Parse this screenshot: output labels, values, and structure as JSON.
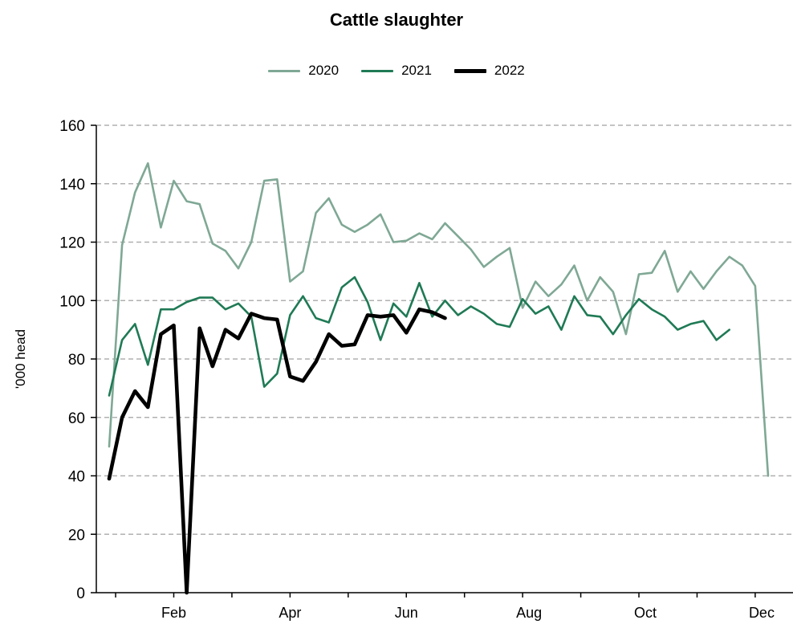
{
  "chart_data": {
    "type": "line",
    "title": "Cattle slaughter",
    "xlabel": "",
    "ylabel": "'000 head",
    "xlim": [
      1,
      53
    ],
    "ylim": [
      0,
      160
    ],
    "yticks": [
      0,
      20,
      40,
      60,
      80,
      100,
      120,
      140,
      160
    ],
    "xtick_labels": [
      {
        "label": "Feb",
        "x": 7
      },
      {
        "label": "Apr",
        "x": 16
      },
      {
        "label": "Jun",
        "x": 25
      },
      {
        "label": "Aug",
        "x": 34.5
      },
      {
        "label": "Oct",
        "x": 43.5
      },
      {
        "label": "Dec",
        "x": 52.5
      }
    ],
    "grid": true,
    "legend": "top-center",
    "series": [
      {
        "name": "2020",
        "color": "#7fa895",
        "width": 2.6,
        "x": [
          2,
          3,
          4,
          5,
          6,
          7,
          8,
          9,
          10,
          11,
          12,
          13,
          14,
          15,
          16,
          17,
          18,
          19,
          20,
          21,
          22,
          23,
          24,
          25,
          26,
          27,
          28,
          29,
          30,
          31,
          32,
          33,
          34,
          35,
          36,
          37,
          38,
          39,
          40,
          41,
          42,
          43,
          44,
          45,
          46,
          47,
          48,
          49,
          50,
          51,
          52,
          53
        ],
        "values": [
          50,
          119,
          137,
          147,
          125,
          141,
          134,
          133,
          119.5,
          117,
          111,
          120,
          141,
          141.5,
          106.5,
          110,
          130,
          135,
          126,
          123.5,
          126,
          129.5,
          120,
          120.5,
          123,
          121,
          126.5,
          122,
          117.5,
          111.5,
          115,
          118,
          97.5,
          106.5,
          101.5,
          105.5,
          112,
          100,
          108,
          103,
          88.5,
          109,
          109.5,
          117,
          103,
          110,
          104,
          110,
          115,
          112,
          105,
          40
        ]
      },
      {
        "name": "2021",
        "color": "#1f7a55",
        "width": 2.6,
        "x": [
          2,
          3,
          4,
          5,
          6,
          7,
          8,
          9,
          10,
          11,
          12,
          13,
          14,
          15,
          16,
          17,
          18,
          19,
          20,
          21,
          22,
          23,
          24,
          25,
          26,
          27,
          28,
          29,
          30,
          31,
          32,
          33,
          34,
          35,
          36,
          37,
          38,
          39,
          40,
          41,
          42,
          43,
          44,
          45,
          46,
          47,
          48,
          49,
          50
        ],
        "values": [
          67.5,
          86.5,
          92,
          78,
          97,
          97,
          99.5,
          101,
          101,
          97,
          99,
          94.5,
          70.5,
          75,
          95,
          101.5,
          94,
          92.5,
          104.5,
          108,
          99.5,
          86.5,
          99,
          94.5,
          106,
          94.5,
          100,
          95,
          98,
          95.5,
          92,
          91,
          100.5,
          95.5,
          98,
          90,
          101.5,
          95,
          94.5,
          88.5,
          95,
          100.5,
          97,
          94.5,
          90,
          92,
          93,
          86.5,
          90
        ]
      },
      {
        "name": "2022",
        "color": "#000000",
        "width": 4.6,
        "x": [
          2,
          3,
          4,
          5,
          6,
          7,
          8,
          9,
          10,
          11,
          12,
          13,
          14,
          15,
          16,
          17,
          18,
          19,
          20,
          21,
          22,
          23,
          24,
          25,
          26,
          27,
          28,
          29
        ],
        "values": [
          39,
          60,
          69,
          63.5,
          88.5,
          91.5,
          0,
          90.5,
          77.5,
          90,
          87,
          95.5,
          94,
          93.5,
          74,
          72.5,
          79,
          88.5,
          84.5,
          85,
          95,
          94.5,
          95,
          89,
          97,
          96,
          94,
          null
        ]
      }
    ]
  }
}
